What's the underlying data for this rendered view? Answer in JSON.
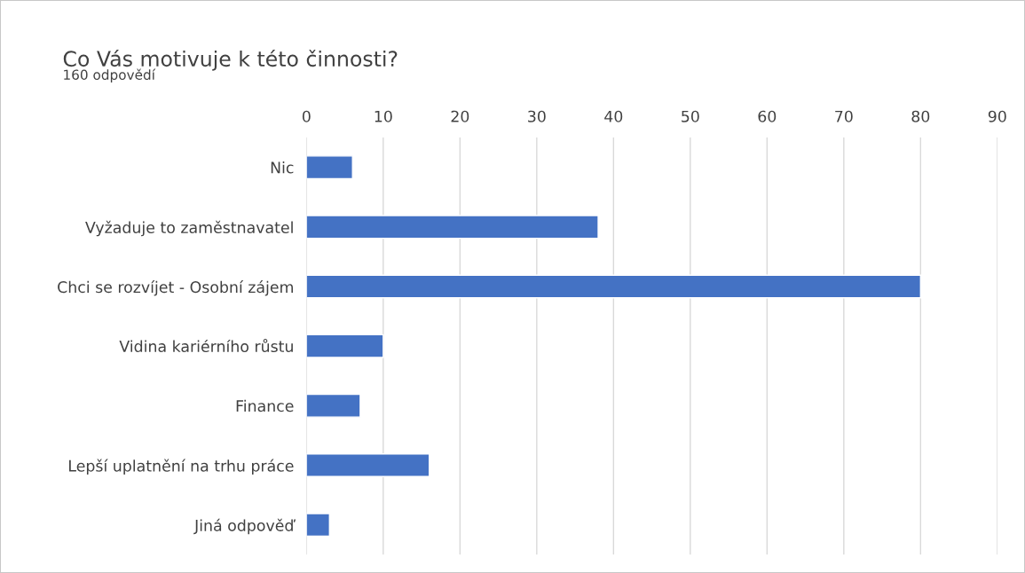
{
  "chart_data": {
    "type": "bar",
    "orientation": "horizontal",
    "title": "Co Vás motivuje k této činnosti?",
    "subtitle": "160 odpovědí",
    "categories": [
      "Nic",
      "Vyžaduje to zaměstnavatel",
      "Chci se rozvíjet - Osobní zájem",
      "Vidina kariérního růstu",
      "Finance",
      "Lepší uplatnění na trhu práce",
      "Jiná odpověď"
    ],
    "values": [
      6,
      38,
      80,
      10,
      7,
      16,
      3
    ],
    "color": "#4472c4",
    "xlim": [
      0,
      90
    ],
    "xticks": [
      0,
      10,
      20,
      30,
      40,
      50,
      60,
      70,
      80,
      90
    ],
    "grid": "x"
  }
}
